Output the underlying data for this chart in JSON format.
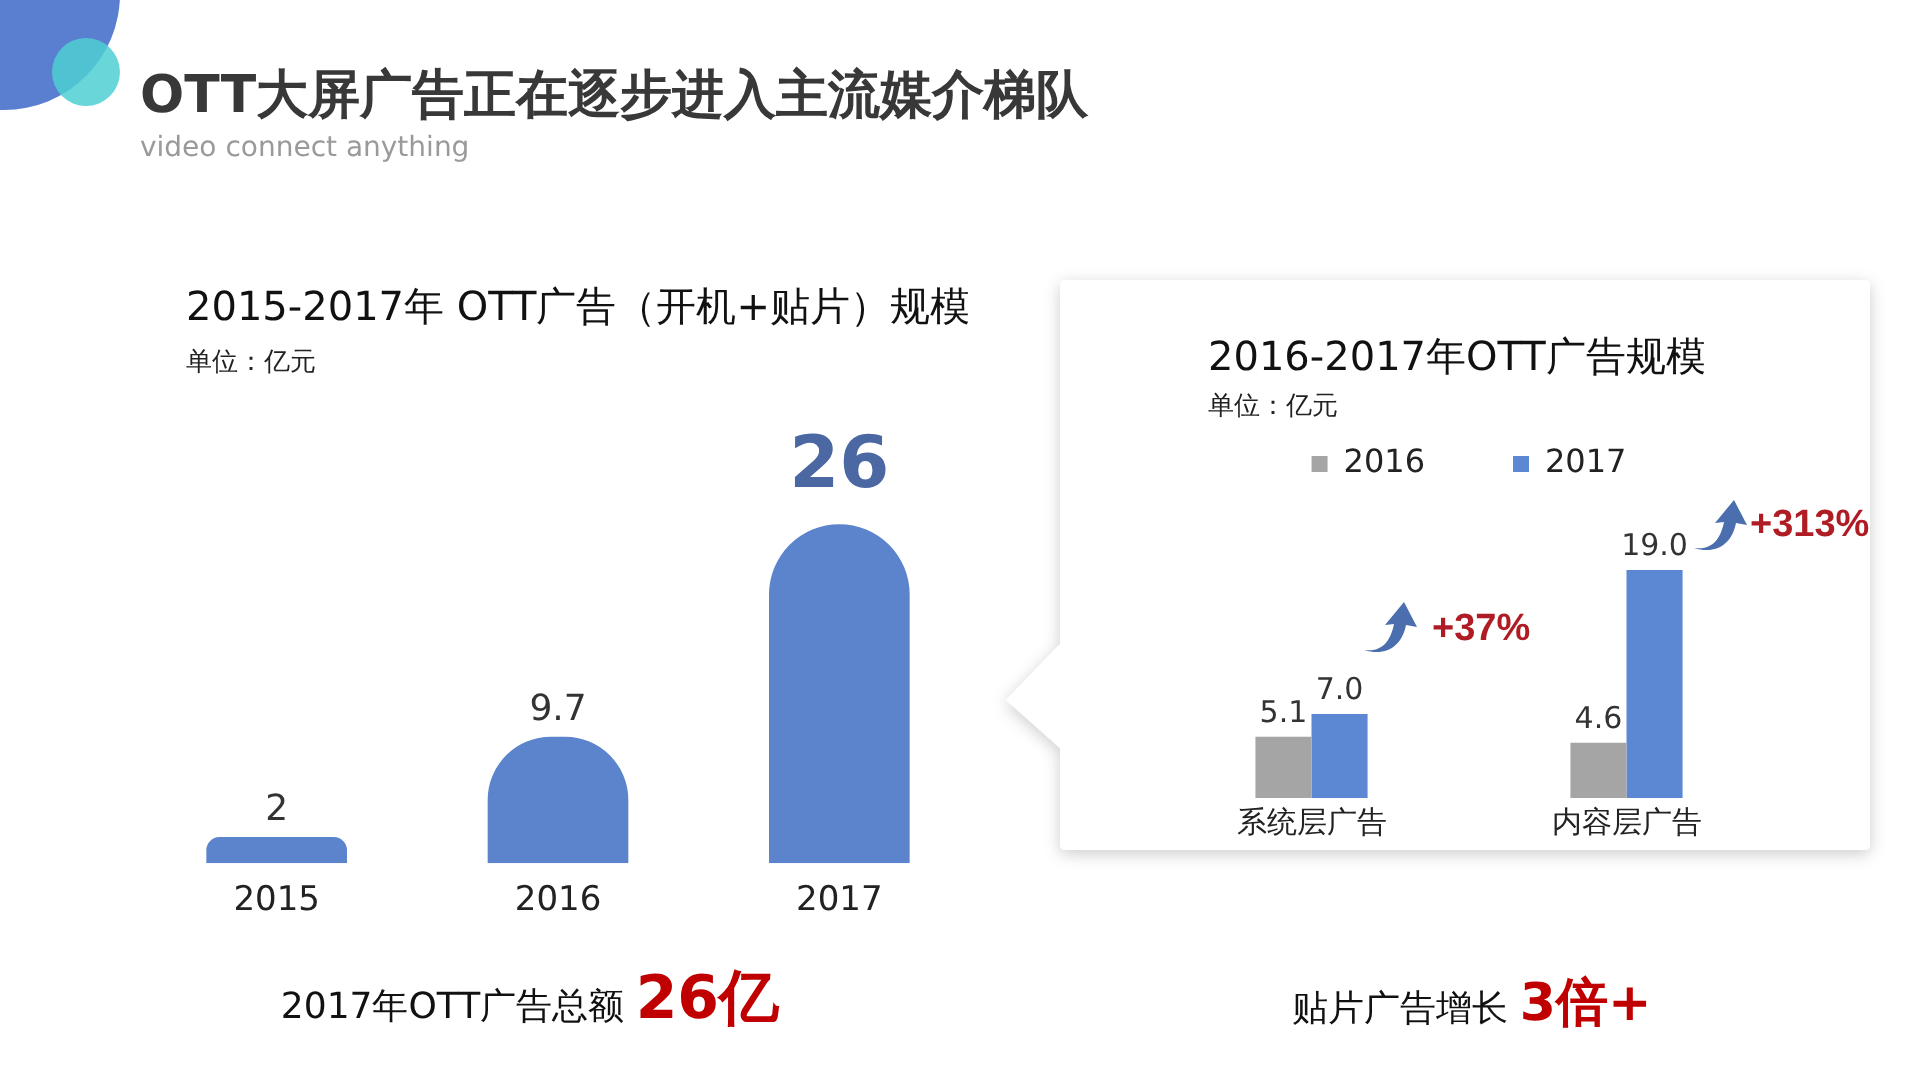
{
  "chart_data": [
    {
      "type": "other",
      "title": "OTT大屏广告正在逐步进入主流媒介梯队",
      "subtitle": "video connect anything"
    },
    {
      "type": "bar",
      "title": "2015-2017年 OTT广告（开机+贴片）规模",
      "subtitle": "单位：亿元",
      "categories": [
        "2015",
        "2016",
        "2017"
      ],
      "values": [
        2,
        9.7,
        26
      ],
      "color": "#5b84cc",
      "data_labels": true,
      "tick_labels": "x",
      "annotations": [
        "2017年OTT广告总额 26亿"
      ]
    },
    {
      "type": "bar",
      "title": "2016-2017年OTT广告规模",
      "subtitle": "单位：亿元",
      "categories": [
        "系统层广告",
        "内容层广告"
      ],
      "series": [
        {
          "name": "2016",
          "color": "#a5a5a5",
          "values": [
            5.1,
            4.6
          ],
          "value_labels": [
            "5.1",
            "4.6"
          ]
        },
        {
          "name": "2017",
          "color": "#5b87d3",
          "values": [
            7,
            19
          ],
          "value_labels": [
            "7.0",
            "19.0"
          ]
        }
      ],
      "legend": "top",
      "tick_labels": "x",
      "annotations": [
        "+37%",
        "+313%",
        "贴片广告增长 3倍+"
      ]
    }
  ]
}
